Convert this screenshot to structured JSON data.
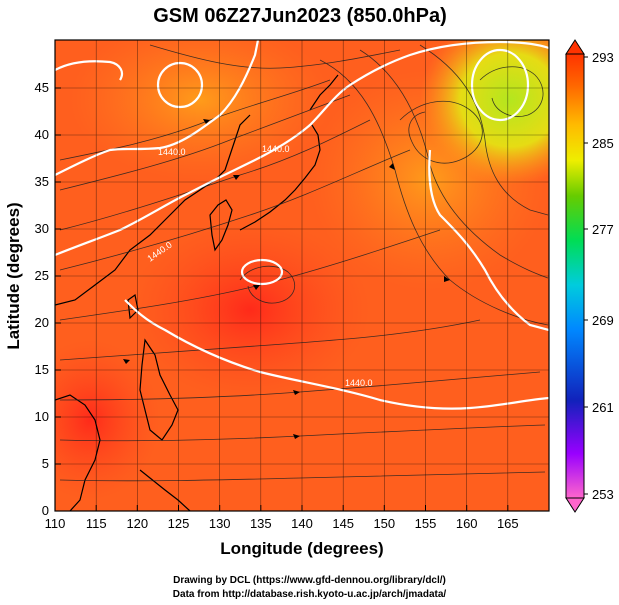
{
  "figure": {
    "title": "GSM 06Z27Jun2023 (850.0hPa)",
    "xlabel": "Longitude (degrees)",
    "ylabel": "Latitude (degrees)",
    "credit_line1": "Drawing by DCL (https://www.gfd-dennou.org/library/dcl/)",
    "credit_line2": "Data from http://database.rish.kyoto-u.ac.jp/arch/jmadata/"
  },
  "map": {
    "lon_range": [
      110,
      170
    ],
    "lat_range": [
      0,
      50
    ],
    "lon_ticks": [
      "110",
      "115",
      "120",
      "125",
      "130",
      "135",
      "140",
      "145",
      "150",
      "155",
      "160",
      "165"
    ],
    "lat_ticks": [
      "0",
      "5",
      "10",
      "15",
      "20",
      "25",
      "30",
      "35",
      "40",
      "45"
    ],
    "grid": true,
    "contour_labels": [
      "1440.0",
      "1440.0",
      "1440.0",
      "1440.0"
    ]
  },
  "colorbar": {
    "labels": [
      "293",
      "285",
      "277",
      "269",
      "261",
      "253"
    ],
    "min": 253,
    "max": 293,
    "colors": [
      "#ff55cc",
      "#aa00ff",
      "#2222cc",
      "#0088ff",
      "#00ccee",
      "#00dd66",
      "#55cc00",
      "#ddee00",
      "#ffcc00",
      "#ff8800",
      "#ff3300"
    ]
  },
  "colors": {
    "field_warm": "#ff5a1e",
    "field_hot": "#ff2d1a",
    "field_mid": "#ff8c1a",
    "field_cool": "#c8e61e",
    "contour": "#ffffff",
    "streamline": "#000000"
  }
}
